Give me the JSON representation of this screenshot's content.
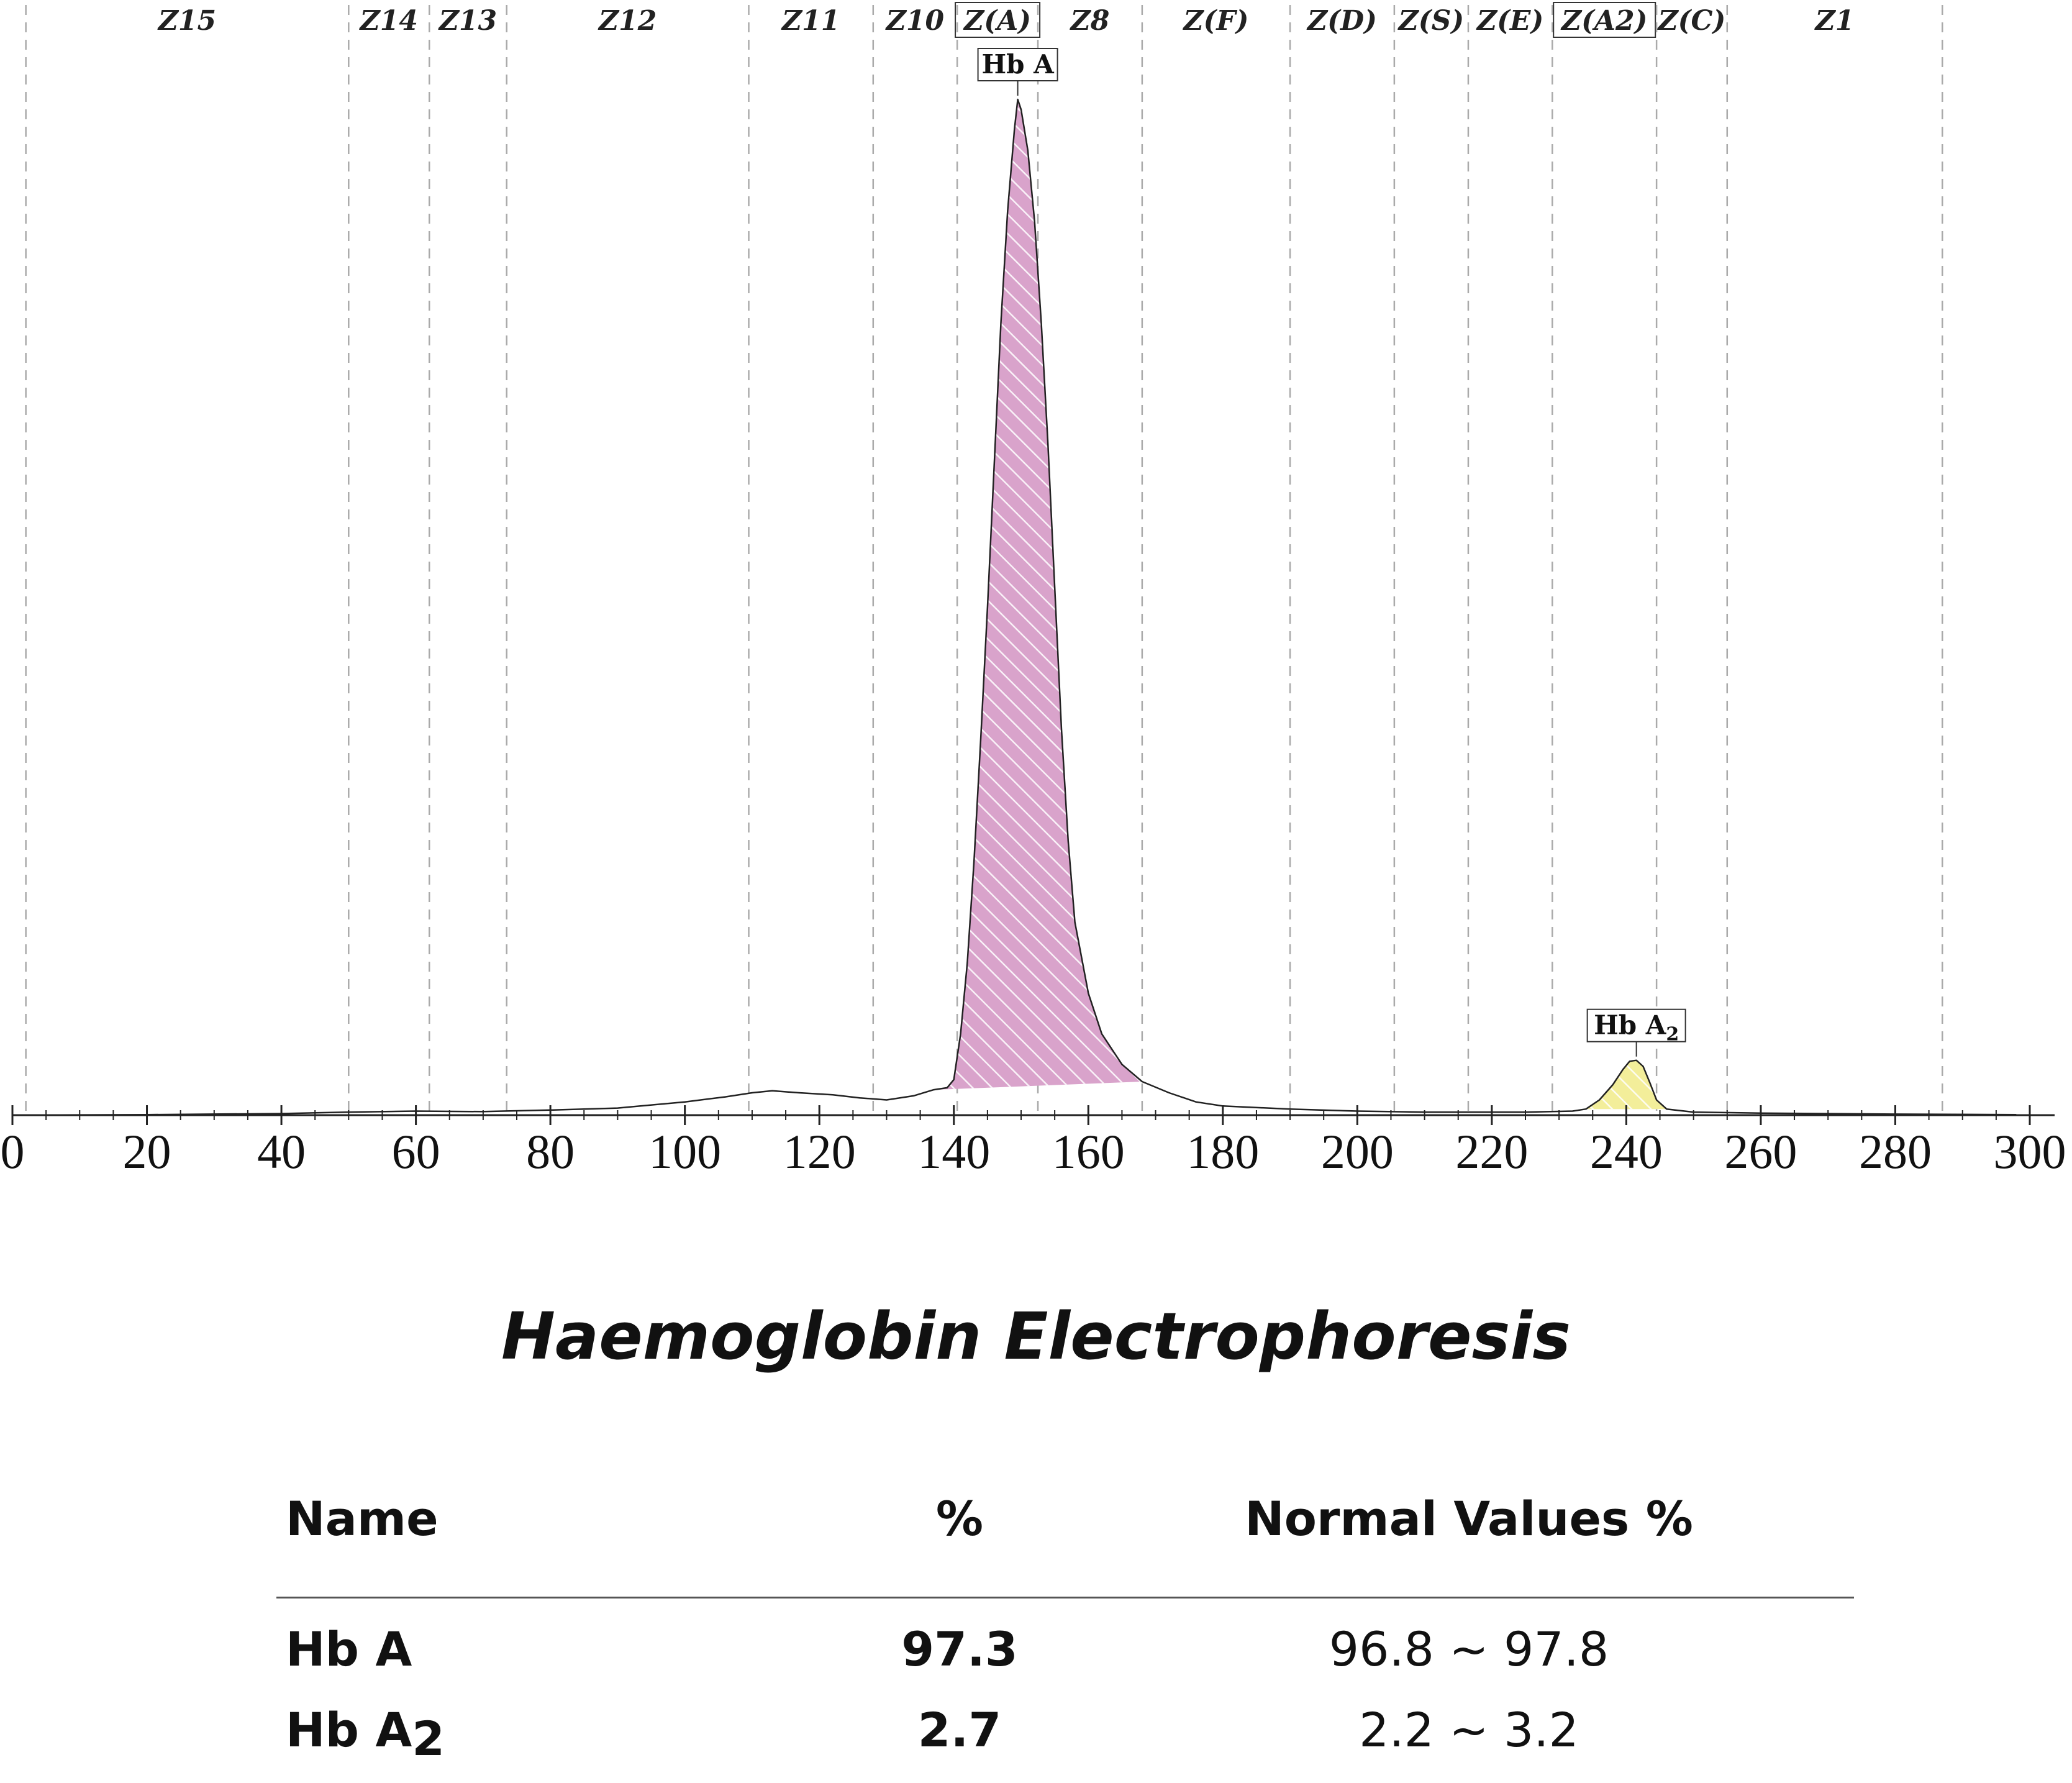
{
  "chart_data": {
    "type": "line",
    "xlim": [
      0,
      300
    ],
    "x_ticks": [
      0,
      20,
      40,
      60,
      80,
      100,
      120,
      140,
      160,
      180,
      200,
      220,
      240,
      260,
      280,
      300
    ],
    "zones": [
      {
        "label": "Z15",
        "boxed": false,
        "boundary": 2
      },
      {
        "label": "Z14",
        "boxed": false,
        "boundary": 50
      },
      {
        "label": "Z13",
        "boxed": false,
        "boundary": 62
      },
      {
        "label": "Z12",
        "boxed": false,
        "boundary": 73.5
      },
      {
        "label": "Z11",
        "boxed": false,
        "boundary": 109.5
      },
      {
        "label": "Z10",
        "boxed": false,
        "boundary": 128
      },
      {
        "label": "Z(A)",
        "boxed": true,
        "boundary": 140.5
      },
      {
        "label": "Z8",
        "boxed": false,
        "boundary": 152.5
      },
      {
        "label": "Z(F)",
        "boxed": false,
        "boundary": 168
      },
      {
        "label": "Z(D)",
        "boxed": false,
        "boundary": 190
      },
      {
        "label": "Z(S)",
        "boxed": false,
        "boundary": 205.5
      },
      {
        "label": "Z(E)",
        "boxed": false,
        "boundary": 216.5
      },
      {
        "label": "Z(A2)",
        "boxed": true,
        "boundary": 229
      },
      {
        "label": "Z(C)",
        "boxed": false,
        "boundary": 244.5
      },
      {
        "label": "Z1",
        "boxed": false,
        "boundary": 255
      },
      {
        "label": "",
        "boxed": false,
        "boundary": 287
      }
    ],
    "trace": [
      [
        0,
        0
      ],
      [
        20,
        0.05
      ],
      [
        40,
        0.15
      ],
      [
        50,
        0.3
      ],
      [
        60,
        0.4
      ],
      [
        70,
        0.35
      ],
      [
        80,
        0.5
      ],
      [
        90,
        0.7
      ],
      [
        100,
        1.3
      ],
      [
        106,
        1.8
      ],
      [
        110,
        2.2
      ],
      [
        113,
        2.4
      ],
      [
        117,
        2.2
      ],
      [
        122,
        2.0
      ],
      [
        126,
        1.7
      ],
      [
        130,
        1.5
      ],
      [
        134,
        1.9
      ],
      [
        137,
        2.5
      ],
      [
        139,
        2.7
      ],
      [
        140,
        3.5
      ],
      [
        141,
        8
      ],
      [
        142,
        15
      ],
      [
        143,
        25
      ],
      [
        144,
        37
      ],
      [
        145,
        50
      ],
      [
        146,
        64
      ],
      [
        147,
        78
      ],
      [
        148,
        89
      ],
      [
        149,
        97
      ],
      [
        149.5,
        100
      ],
      [
        150,
        99
      ],
      [
        151,
        95
      ],
      [
        152,
        88
      ],
      [
        153,
        78
      ],
      [
        154,
        66
      ],
      [
        155,
        52
      ],
      [
        156,
        38
      ],
      [
        157,
        27
      ],
      [
        158,
        19
      ],
      [
        160,
        12
      ],
      [
        162,
        8
      ],
      [
        165,
        5
      ],
      [
        168,
        3.3
      ],
      [
        172,
        2.2
      ],
      [
        176,
        1.3
      ],
      [
        180,
        0.9
      ],
      [
        190,
        0.6
      ],
      [
        200,
        0.4
      ],
      [
        210,
        0.3
      ],
      [
        225,
        0.3
      ],
      [
        232,
        0.4
      ],
      [
        234,
        0.6
      ],
      [
        236,
        1.5
      ],
      [
        238,
        3.0
      ],
      [
        239.5,
        4.5
      ],
      [
        240.5,
        5.3
      ],
      [
        241.5,
        5.4
      ],
      [
        242.5,
        4.8
      ],
      [
        243.5,
        3.2
      ],
      [
        244.5,
        1.5
      ],
      [
        246,
        0.6
      ],
      [
        250,
        0.3
      ],
      [
        260,
        0.2
      ],
      [
        280,
        0.1
      ],
      [
        298,
        0.05
      ]
    ],
    "peaks": [
      {
        "label": "Hb A",
        "sub": "",
        "apex": 149.5,
        "from": 137,
        "to": 168,
        "fill": "#d9a3cb"
      },
      {
        "label": "Hb A",
        "sub": "2",
        "apex": 241.5,
        "from": 234,
        "to": 246,
        "fill": "#f3ee9a"
      }
    ],
    "title": "Haemoglobin Electrophoresis"
  },
  "table": {
    "headers": {
      "name": "Name",
      "pct": "%",
      "normal": "Normal Values %"
    },
    "rows": [
      {
        "name": "Hb A",
        "sub": "",
        "pct": "97.3",
        "normal": "96.8 ~ 97.8"
      },
      {
        "name": "Hb A",
        "sub": "2",
        "pct": "2.7",
        "normal": "2.2 ~  3.2"
      }
    ]
  },
  "colors": {
    "trace": "#222222",
    "grid": "#aaaaaa",
    "hbA": "#d9a3cb",
    "hbA2": "#f3ee9a"
  }
}
